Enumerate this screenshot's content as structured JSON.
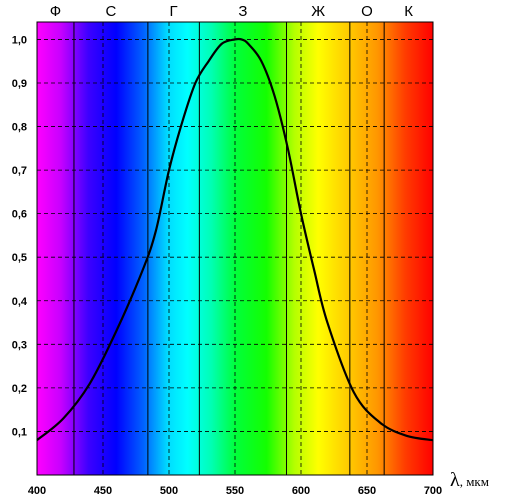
{
  "chart_data": {
    "type": "line",
    "title": "",
    "xlabel": "λ, мкм",
    "xlabel_symbol": "λ",
    "xlabel_unit": ", мкм",
    "ylabel": "",
    "xlim": [
      400,
      700
    ],
    "ylim": [
      0.0,
      1.04
    ],
    "x_ticks": [
      "400",
      "450",
      "500",
      "550",
      "600",
      "650",
      "700"
    ],
    "y_ticks": [
      "0,1",
      "0,2",
      "0,3",
      "0,4",
      "0,5",
      "0,6",
      "0,7",
      "0,8",
      "0,9",
      "1,0"
    ],
    "grid": true,
    "background": "visible spectrum gradient",
    "color_bands": [
      {
        "label": "Ф",
        "from": 400,
        "to": 428
      },
      {
        "label": "С",
        "from": 428,
        "to": 484
      },
      {
        "label": "Г",
        "from": 484,
        "to": 523
      },
      {
        "label": "З",
        "from": 523,
        "to": 589
      },
      {
        "label": "Ж",
        "from": 589,
        "to": 637
      },
      {
        "label": "О",
        "from": 637,
        "to": 663
      },
      {
        "label": "К",
        "from": 663,
        "to": 700
      }
    ],
    "series": [
      {
        "x": [
          400,
          420,
          440,
          460,
          480,
          490,
          500,
          510,
          520,
          530,
          540,
          550,
          555,
          560,
          570,
          580,
          590,
          600,
          610,
          620,
          640,
          660,
          680,
          700
        ],
        "y": [
          0.08,
          0.13,
          0.21,
          0.33,
          0.47,
          0.56,
          0.7,
          0.81,
          0.9,
          0.95,
          0.99,
          1.0,
          1.0,
          0.99,
          0.95,
          0.87,
          0.75,
          0.6,
          0.47,
          0.35,
          0.19,
          0.12,
          0.09,
          0.08
        ],
        "color": "#000000"
      }
    ]
  }
}
